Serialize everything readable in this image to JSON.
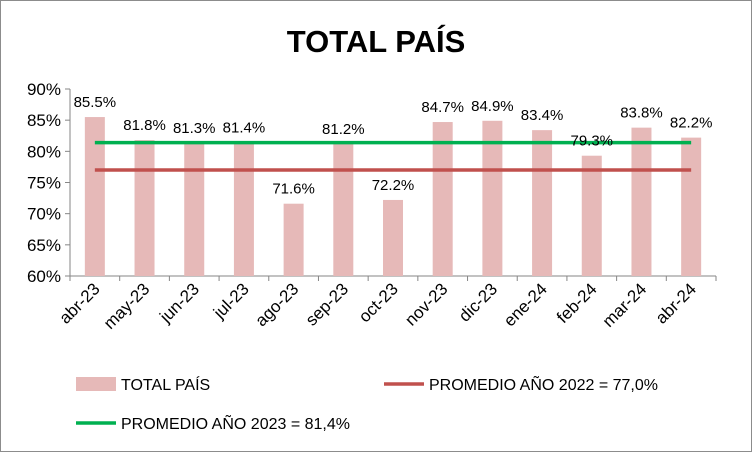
{
  "chart_data": {
    "type": "bar",
    "title": "TOTAL PAÍS",
    "xlabel": "",
    "ylabel": "",
    "ylim": [
      60,
      90
    ],
    "yticks": [
      "60%",
      "65%",
      "70%",
      "75%",
      "80%",
      "85%",
      "90%"
    ],
    "ytick_values": [
      60,
      65,
      70,
      75,
      80,
      85,
      90
    ],
    "categories": [
      "abr-23",
      "may-23",
      "jun-23",
      "jul-23",
      "ago-23",
      "sep-23",
      "oct-23",
      "nov-23",
      "dic-23",
      "ene-24",
      "feb-24",
      "mar-24",
      "abr-24"
    ],
    "series": [
      {
        "name": "TOTAL PAÍS",
        "values": [
          85.5,
          81.8,
          81.3,
          81.4,
          71.6,
          81.2,
          72.2,
          84.7,
          84.9,
          83.4,
          79.3,
          83.8,
          82.2
        ],
        "labels": [
          "85.5%",
          "81.8%",
          "81.3%",
          "81.4%",
          "71.6%",
          "81.2%",
          "72.2%",
          "84.7%",
          "84.9%",
          "83.4%",
          "79.3%",
          "83.8%",
          "82.2%"
        ],
        "color": "#e6b9b8"
      }
    ],
    "reference_lines": [
      {
        "name": "PROMEDIO AÑO 2022 = 77,0%",
        "value": 77.0,
        "color": "#c0504d"
      },
      {
        "name": "PROMEDIO AÑO 2023 = 81,4%",
        "value": 81.4,
        "color": "#00b050"
      }
    ],
    "grid": false,
    "legend_position": "bottom"
  }
}
